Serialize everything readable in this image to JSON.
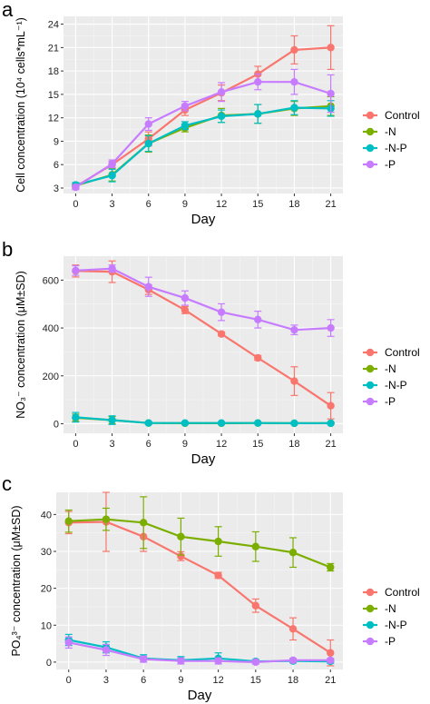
{
  "chart_data": [
    {
      "panel": "a",
      "type": "line",
      "xlabel": "Day",
      "ylabel": "Cell concentration (10⁴ cells*mL⁻¹)",
      "x": [
        0,
        3,
        6,
        9,
        12,
        15,
        18,
        21
      ],
      "xticks": [
        "0",
        "3",
        "6",
        "9",
        "12",
        "15",
        "18",
        "21"
      ],
      "ylim": [
        2.3,
        25
      ],
      "yticks": [
        3,
        6,
        9,
        12,
        15,
        18,
        21,
        24
      ],
      "grid": true,
      "legend": [
        "Control",
        "-N",
        "-N-P",
        "-P"
      ],
      "legend_position": "right",
      "series": [
        {
          "name": "Control",
          "color": "#F8766D",
          "values": [
            3.2,
            6.0,
            9.3,
            13.0,
            15.2,
            17.6,
            20.7,
            21.0
          ],
          "errors": [
            0.3,
            0.4,
            0.9,
            0.7,
            1.0,
            1.0,
            1.8,
            2.8
          ]
        },
        {
          "name": "-N",
          "color": "#7CAE00",
          "values": [
            3.3,
            4.7,
            8.7,
            10.7,
            12.3,
            12.5,
            13.2,
            13.5
          ],
          "errors": [
            0.3,
            0.8,
            1.1,
            0.5,
            0.9,
            1.2,
            0.9,
            1.2
          ]
        },
        {
          "name": "-N-P",
          "color": "#00BFC4",
          "values": [
            3.4,
            4.6,
            8.7,
            11.0,
            12.2,
            12.5,
            13.3,
            13.2
          ],
          "errors": [
            0.3,
            0.8,
            1.0,
            0.5,
            0.8,
            1.2,
            0.9,
            1.0
          ]
        },
        {
          "name": "-P",
          "color": "#C77CFF",
          "values": [
            3.1,
            6.1,
            11.2,
            13.5,
            15.3,
            16.6,
            16.6,
            15.1
          ],
          "errors": [
            0.3,
            0.5,
            0.8,
            0.6,
            1.2,
            1.0,
            1.6,
            2.4
          ]
        }
      ]
    },
    {
      "panel": "b",
      "type": "line",
      "xlabel": "Day",
      "ylabel": "NO₃⁻ concentration (μM±SD)",
      "x": [
        0,
        3,
        6,
        9,
        12,
        15,
        18,
        21
      ],
      "xticks": [
        "0",
        "3",
        "6",
        "9",
        "12",
        "15",
        "18",
        "21"
      ],
      "ylim": [
        -40,
        700
      ],
      "yticks": [
        0,
        200,
        400,
        600
      ],
      "grid": true,
      "legend": [
        "Control",
        "-N",
        "-N-P",
        "-P"
      ],
      "legend_position": "right",
      "series": [
        {
          "name": "Control",
          "color": "#F8766D",
          "values": [
            638,
            635,
            560,
            475,
            375,
            275,
            178,
            75
          ],
          "errors": [
            25,
            45,
            20,
            15,
            8,
            10,
            60,
            55
          ]
        },
        {
          "name": "-N",
          "color": "#7CAE00",
          "values": [
            25,
            15,
            3,
            2,
            2,
            3,
            2,
            2
          ],
          "errors": [
            15,
            15,
            5,
            3,
            3,
            3,
            3,
            3
          ]
        },
        {
          "name": "-N-P",
          "color": "#00BFC4",
          "values": [
            27,
            15,
            3,
            3,
            3,
            3,
            2,
            2
          ],
          "errors": [
            20,
            18,
            5,
            3,
            3,
            3,
            3,
            3
          ]
        },
        {
          "name": "-P",
          "color": "#C77CFF",
          "values": [
            640,
            648,
            572,
            525,
            466,
            435,
            392,
            400
          ],
          "errors": [
            20,
            15,
            40,
            30,
            35,
            35,
            20,
            35
          ]
        }
      ]
    },
    {
      "panel": "c",
      "type": "line",
      "xlabel": "Day",
      "ylabel": "PO₄³⁻ concentration (μM±SD)",
      "x": [
        0,
        3,
        6,
        9,
        12,
        15,
        18,
        21
      ],
      "xticks": [
        "0",
        "3",
        "6",
        "9",
        "12",
        "15",
        "18",
        "21"
      ],
      "ylim": [
        -2,
        46
      ],
      "yticks": [
        0,
        10,
        20,
        30,
        40
      ],
      "grid": true,
      "legend": [
        "Control",
        "-N",
        "-N-P",
        "-P"
      ],
      "legend_position": "right",
      "series": [
        {
          "name": "Control",
          "color": "#F8766D",
          "values": [
            37.8,
            38.0,
            34.0,
            28.7,
            23.5,
            15.3,
            9.0,
            2.5
          ],
          "errors": [
            3.0,
            8.0,
            4.0,
            1.2,
            0.8,
            1.8,
            3.0,
            3.5
          ]
        },
        {
          "name": "-N",
          "color": "#7CAE00",
          "values": [
            38.2,
            38.7,
            37.8,
            34.0,
            32.7,
            31.3,
            29.7,
            25.7
          ],
          "errors": [
            3.0,
            3.0,
            7.0,
            5.0,
            4.0,
            4.0,
            4.0,
            1.0
          ]
        },
        {
          "name": "-N-P",
          "color": "#00BFC4",
          "values": [
            6.0,
            4.0,
            1.0,
            0.5,
            1.0,
            0.2,
            0.3,
            0.2
          ],
          "errors": [
            1.5,
            1.5,
            1.0,
            1.0,
            1.5,
            0.5,
            0.5,
            0.5
          ]
        },
        {
          "name": "-P",
          "color": "#C77CFF",
          "values": [
            5.3,
            3.3,
            0.8,
            0.3,
            0.3,
            0.0,
            0.5,
            0.5
          ],
          "errors": [
            1.5,
            1.5,
            0.8,
            0.8,
            0.8,
            0.5,
            0.5,
            0.5
          ]
        }
      ]
    }
  ]
}
